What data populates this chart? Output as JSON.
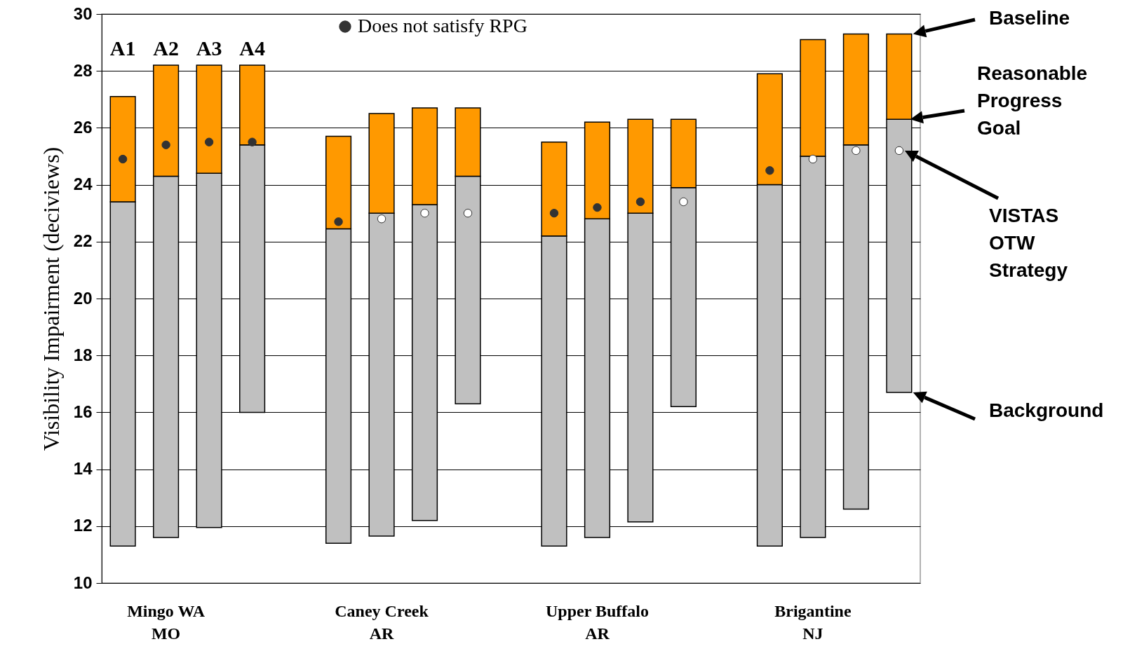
{
  "chart_data": {
    "type": "bar",
    "ylabel": "Visibility Impairment (deciviews)",
    "categories": [
      null,
      "Mingo WA\nMO",
      null,
      null,
      null,
      null,
      "Caney Creek\nAR",
      null,
      null,
      null,
      null,
      "Upper Buffalo\nAR",
      null,
      null,
      null,
      null,
      "Brigantine\nNJ",
      null,
      null
    ],
    "series": [
      {
        "color": "#c0c0c0",
        "base": [
          11.3,
          11.6,
          11.95,
          16.0,
          null,
          11.4,
          11.65,
          12.2,
          16.3,
          null,
          11.3,
          11.6,
          12.15,
          16.2,
          null,
          11.3,
          11.6,
          12.6,
          16.7
        ],
        "values": [
          12.1,
          12.7,
          12.45,
          9.4,
          null,
          11.05,
          11.35,
          11.1,
          8.0,
          null,
          10.9,
          11.2,
          10.85,
          7.7,
          null,
          12.7,
          13.4,
          12.8,
          9.6
        ]
      },
      {
        "color": "#ff9900",
        "base": [
          23.4,
          24.3,
          24.4,
          25.4,
          null,
          22.45,
          23.0,
          23.3,
          24.3,
          null,
          22.2,
          22.8,
          23.0,
          23.9,
          null,
          24.0,
          25.0,
          25.4,
          26.3
        ],
        "values": [
          3.7,
          3.9,
          3.8,
          2.8,
          null,
          3.25,
          3.5,
          3.4,
          2.4,
          null,
          3.3,
          3.4,
          3.3,
          2.4,
          null,
          3.9,
          4.1,
          3.9,
          3.0
        ]
      },
      {
        "type": "scatter",
        "name": "Does not satisfy RPG",
        "color": "#333333",
        "values": [
          24.9,
          25.4,
          25.5,
          25.5,
          null,
          22.7,
          null,
          null,
          null,
          null,
          23.0,
          23.2,
          23.4,
          null,
          null,
          24.5,
          null,
          null,
          null
        ]
      },
      {
        "type": "scatter",
        "color": "#ffffff",
        "values": [
          null,
          null,
          null,
          null,
          null,
          null,
          22.8,
          23.0,
          23.0,
          null,
          null,
          null,
          null,
          23.4,
          null,
          null,
          24.9,
          25.2,
          25.2
        ]
      }
    ],
    "ylim": [
      10,
      30
    ],
    "yticks": [
      10,
      12,
      14,
      16,
      18,
      20,
      22,
      24,
      26,
      28,
      30
    ],
    "grid": "y",
    "legend": "top",
    "marker": "circle",
    "annotations": [
      "A1",
      "A2",
      "A3",
      "A4",
      "Baseline",
      "Reasonable Progress Goal",
      "VISTAS OTW Strategy",
      "Background"
    ]
  }
}
